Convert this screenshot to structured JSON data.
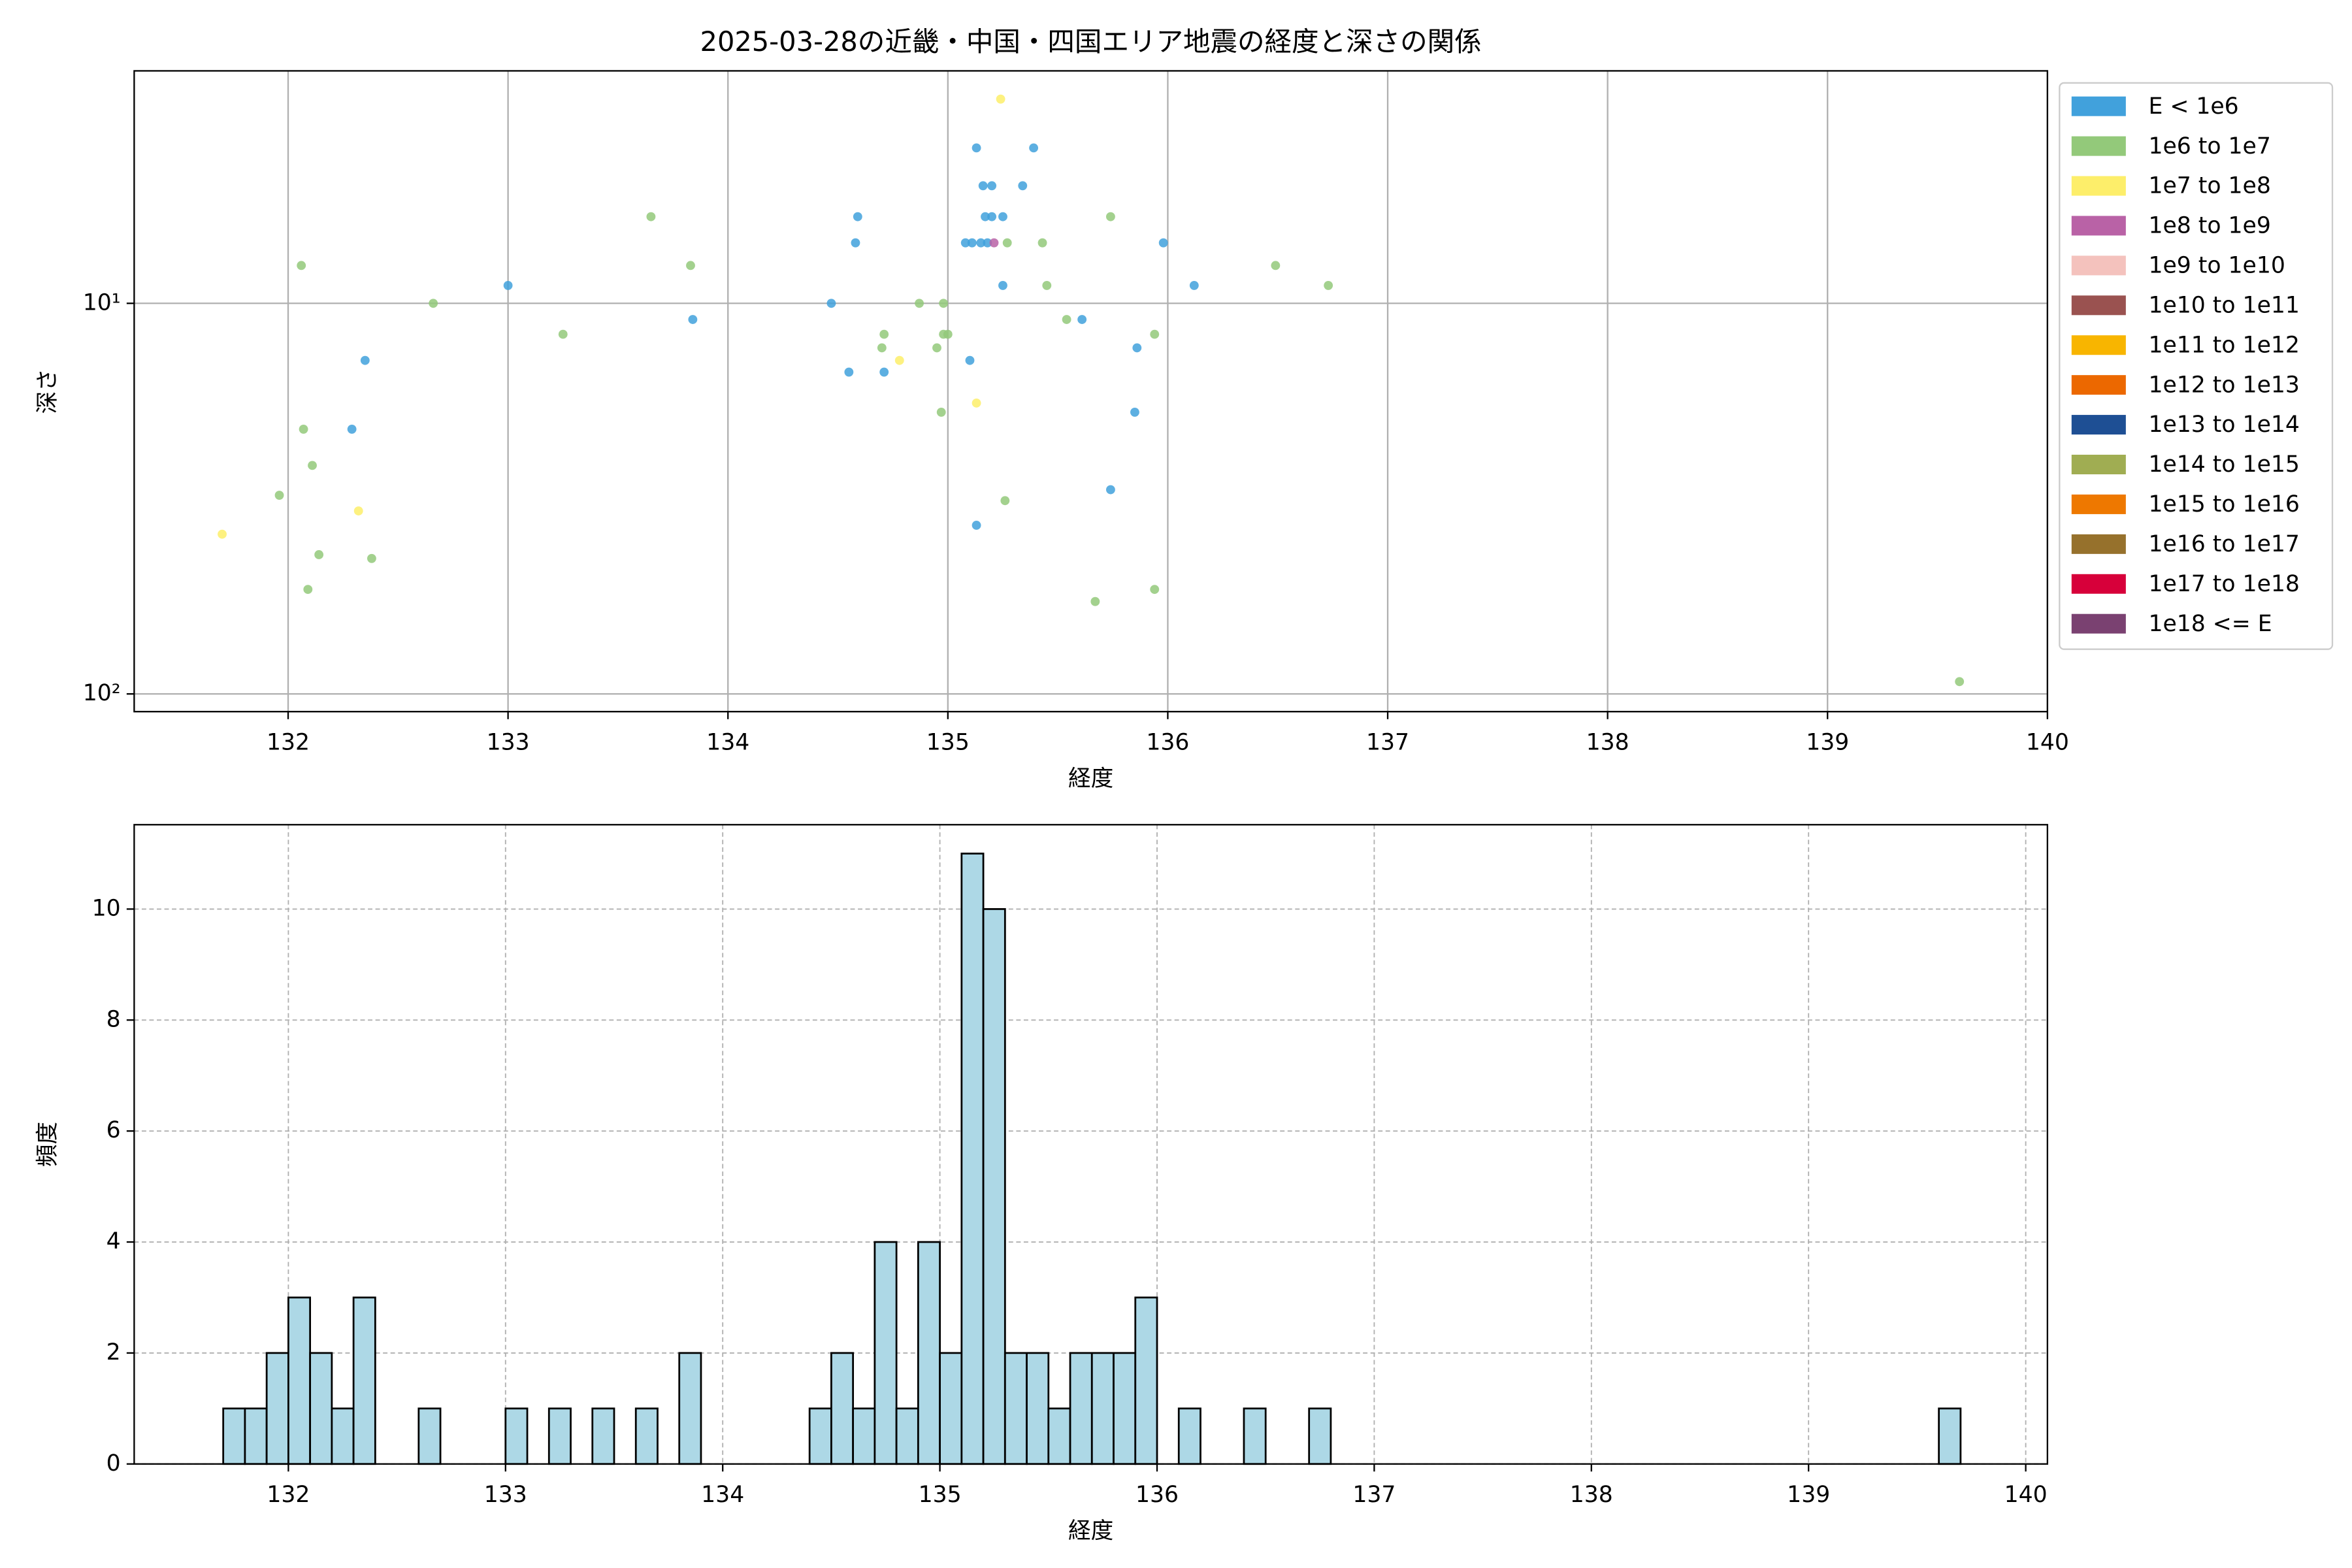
{
  "chart_data": [
    {
      "type": "scatter",
      "title": "2025-03-28の近畿・中国・四国エリア地震の経度と深さの関係",
      "x_label": "経度",
      "y_label": "深さ",
      "xlim": [
        131.3,
        140.0
      ],
      "ylim": [
        111,
        2.54
      ],
      "log_y": true,
      "grid": true,
      "xticks": [
        132,
        133,
        134,
        135,
        136,
        137,
        138,
        139,
        140
      ],
      "yticks": [
        {
          "value": 10,
          "label": "10¹"
        },
        {
          "value": 100,
          "label": "10²"
        }
      ],
      "legend": "outside right",
      "series": [
        {
          "name": "E < 1e6",
          "color": "#41a1dc",
          "x": [
            135.13,
            135.39,
            135.16,
            135.2,
            135.34,
            134.59,
            135.17,
            135.2,
            135.25,
            134.58,
            135.08,
            135.11,
            135.15,
            135.18,
            135.98,
            133.0,
            135.25,
            136.12,
            134.47,
            133.84,
            135.61,
            135.86,
            132.35,
            135.1,
            134.55,
            134.71,
            135.85,
            132.29,
            135.74,
            135.13
          ],
          "values": [
            4,
            4,
            5,
            5,
            5,
            6,
            6,
            6,
            6,
            7,
            7,
            7,
            7,
            7,
            7,
            9,
            9,
            9,
            10,
            11,
            11,
            13,
            14,
            14,
            15,
            15,
            19,
            21,
            30,
            37
          ]
        },
        {
          "name": "1e6 to 1e7",
          "color": "#93c97a",
          "x": [
            132.06,
            133.65,
            133.83,
            132.66,
            133.25,
            134.87,
            134.98,
            134.71,
            134.7,
            134.95,
            134.98,
            135.0,
            135.27,
            135.43,
            135.45,
            135.54,
            135.74,
            135.94,
            136.49,
            136.73,
            134.97,
            135.26,
            132.07,
            132.11,
            131.96,
            132.14,
            132.09,
            132.38,
            135.67,
            135.94,
            139.6
          ],
          "values": [
            8,
            6,
            8,
            10,
            12,
            10,
            10,
            12,
            13,
            13,
            12,
            12,
            7,
            7,
            9,
            11,
            6,
            12,
            8,
            9,
            19,
            32,
            21,
            26,
            31,
            44,
            54,
            45,
            58,
            54,
            93
          ]
        },
        {
          "name": "1e7 to 1e8",
          "color": "#fdee6a",
          "x": [
            135.24,
            134.78,
            135.13,
            132.32,
            131.7
          ],
          "values": [
            3,
            14,
            18,
            34,
            39
          ]
        },
        {
          "name": "1e8 to 1e9",
          "color": "#b962a6",
          "x": [
            135.21
          ],
          "values": [
            7
          ]
        },
        {
          "name": "1e9 to 1e10",
          "color": "#f4c2bd",
          "x": [],
          "values": []
        },
        {
          "name": "1e10 to 1e11",
          "color": "#9a5250",
          "x": [],
          "values": []
        },
        {
          "name": "1e11 to 1e12",
          "color": "#f8b500",
          "x": [],
          "values": []
        },
        {
          "name": "1e12 to 1e13",
          "color": "#ec6800",
          "x": [],
          "values": []
        },
        {
          "name": "1e13 to 1e14",
          "color": "#1e4f94",
          "x": [],
          "values": []
        },
        {
          "name": "1e14 to 1e15",
          "color": "#a0ad52",
          "x": [],
          "values": []
        },
        {
          "name": "1e15 to 1e16",
          "color": "#ee7800",
          "x": [],
          "values": []
        },
        {
          "name": "1e16 to 1e17",
          "color": "#96712c",
          "x": [],
          "values": []
        },
        {
          "name": "1e17 to 1e18",
          "color": "#d7003a",
          "x": [],
          "values": []
        },
        {
          "name": "1e18 <= E",
          "color": "#7a4171",
          "x": [],
          "values": []
        }
      ]
    },
    {
      "type": "histogram",
      "x_label": "経度",
      "y_label": "頻度",
      "xlim": [
        131.29,
        140.1
      ],
      "ylim": [
        0,
        11.52
      ],
      "grid": "dashed",
      "color": "#add8e6",
      "edgecolor": "#000000",
      "xticks": [
        132,
        133,
        134,
        135,
        136,
        137,
        138,
        139,
        140
      ],
      "yticks": [
        0,
        2,
        4,
        6,
        8,
        10
      ],
      "bins": [
        131.7,
        131.8,
        131.9,
        132.0,
        132.1,
        132.2,
        132.3,
        132.4,
        132.5,
        132.6,
        132.7,
        132.8,
        132.9,
        133.0,
        133.1,
        133.2,
        133.3,
        133.4,
        133.5,
        133.6,
        133.7,
        133.8,
        133.9,
        134.0,
        134.1,
        134.2,
        134.3,
        134.4,
        134.5,
        134.6,
        134.7,
        134.8,
        134.9,
        135.0,
        135.1,
        135.2,
        135.3,
        135.4,
        135.5,
        135.6,
        135.7,
        135.8,
        135.9,
        136.0,
        136.1,
        136.2,
        136.3,
        136.4,
        136.5,
        136.6,
        136.7,
        136.8,
        136.9,
        137.0,
        137.1,
        137.2,
        137.3,
        137.4,
        137.5,
        137.6,
        137.7,
        137.8,
        137.9,
        138.0,
        138.1,
        138.2,
        138.3,
        138.4,
        138.5,
        138.6,
        138.7,
        138.8,
        138.9,
        139.0,
        139.1,
        139.2,
        139.3,
        139.4,
        139.5,
        139.6,
        139.7
      ],
      "values": [
        1,
        1,
        2,
        3,
        2,
        1,
        3,
        0,
        0,
        1,
        0,
        0,
        0,
        1,
        0,
        1,
        0,
        1,
        0,
        1,
        0,
        2,
        0,
        0,
        0,
        0,
        0,
        1,
        2,
        1,
        4,
        1,
        4,
        2,
        11,
        10,
        2,
        2,
        1,
        2,
        2,
        2,
        3,
        0,
        1,
        0,
        0,
        1,
        0,
        0,
        1,
        0,
        0,
        0,
        0,
        0,
        0,
        0,
        0,
        0,
        0,
        0,
        0,
        0,
        0,
        0,
        0,
        0,
        0,
        0,
        0,
        0,
        0,
        0,
        0,
        0,
        0,
        0,
        0,
        1
      ]
    }
  ]
}
